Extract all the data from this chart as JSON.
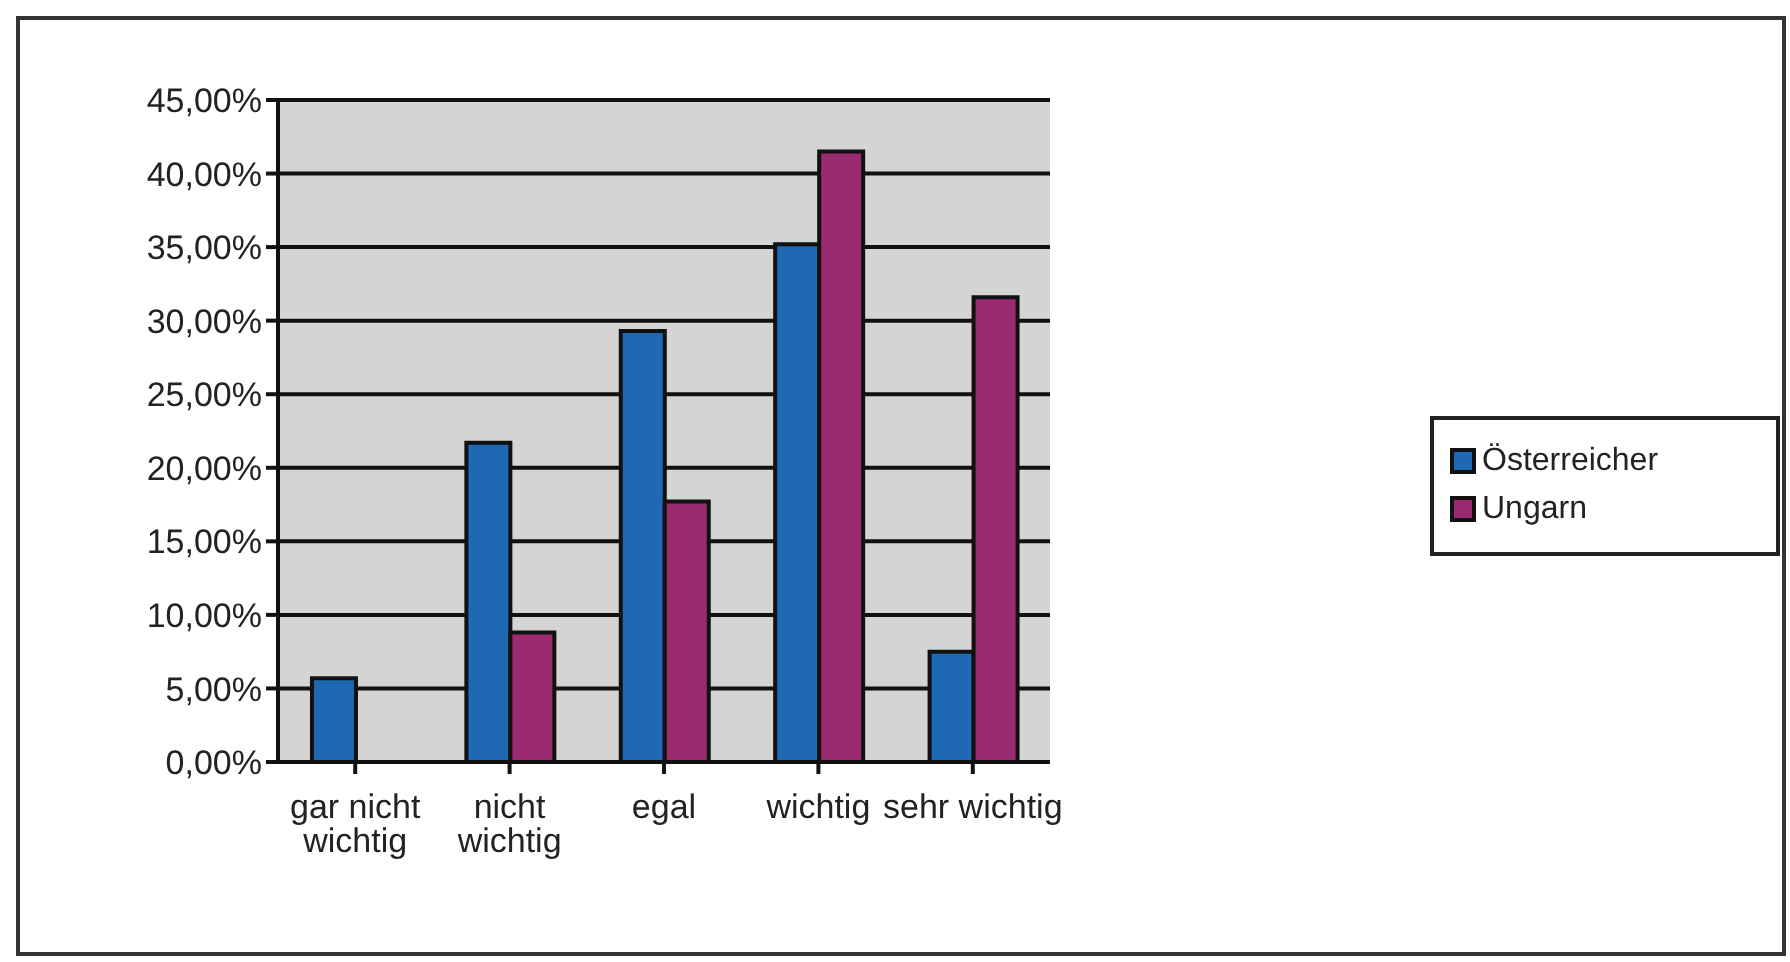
{
  "chart_data": {
    "type": "bar",
    "categories": [
      "gar nicht wichtig",
      "nicht wichtig",
      "egal",
      "wichtig",
      "sehr wichtig"
    ],
    "series": [
      {
        "name": "Österreicher",
        "color": "#1f68b4",
        "values": [
          5.7,
          21.7,
          29.3,
          35.2,
          7.5
        ]
      },
      {
        "name": "Ungarn",
        "color": "#9b2b70",
        "values": [
          0,
          8.8,
          17.7,
          41.5,
          31.6
        ]
      }
    ],
    "ylim": [
      0,
      45
    ],
    "yticks": [
      {
        "value": 0,
        "label": "0,00%"
      },
      {
        "value": 5,
        "label": "5,00%"
      },
      {
        "value": 10,
        "label": "10,00%"
      },
      {
        "value": 15,
        "label": "15,00%"
      },
      {
        "value": 20,
        "label": "20,00%"
      },
      {
        "value": 25,
        "label": "25,00%"
      },
      {
        "value": 30,
        "label": "30,00%"
      },
      {
        "value": 35,
        "label": "35,00%"
      },
      {
        "value": 40,
        "label": "40,00%"
      },
      {
        "value": 45,
        "label": "45,00%"
      }
    ],
    "grid": "y",
    "legend": "right"
  }
}
